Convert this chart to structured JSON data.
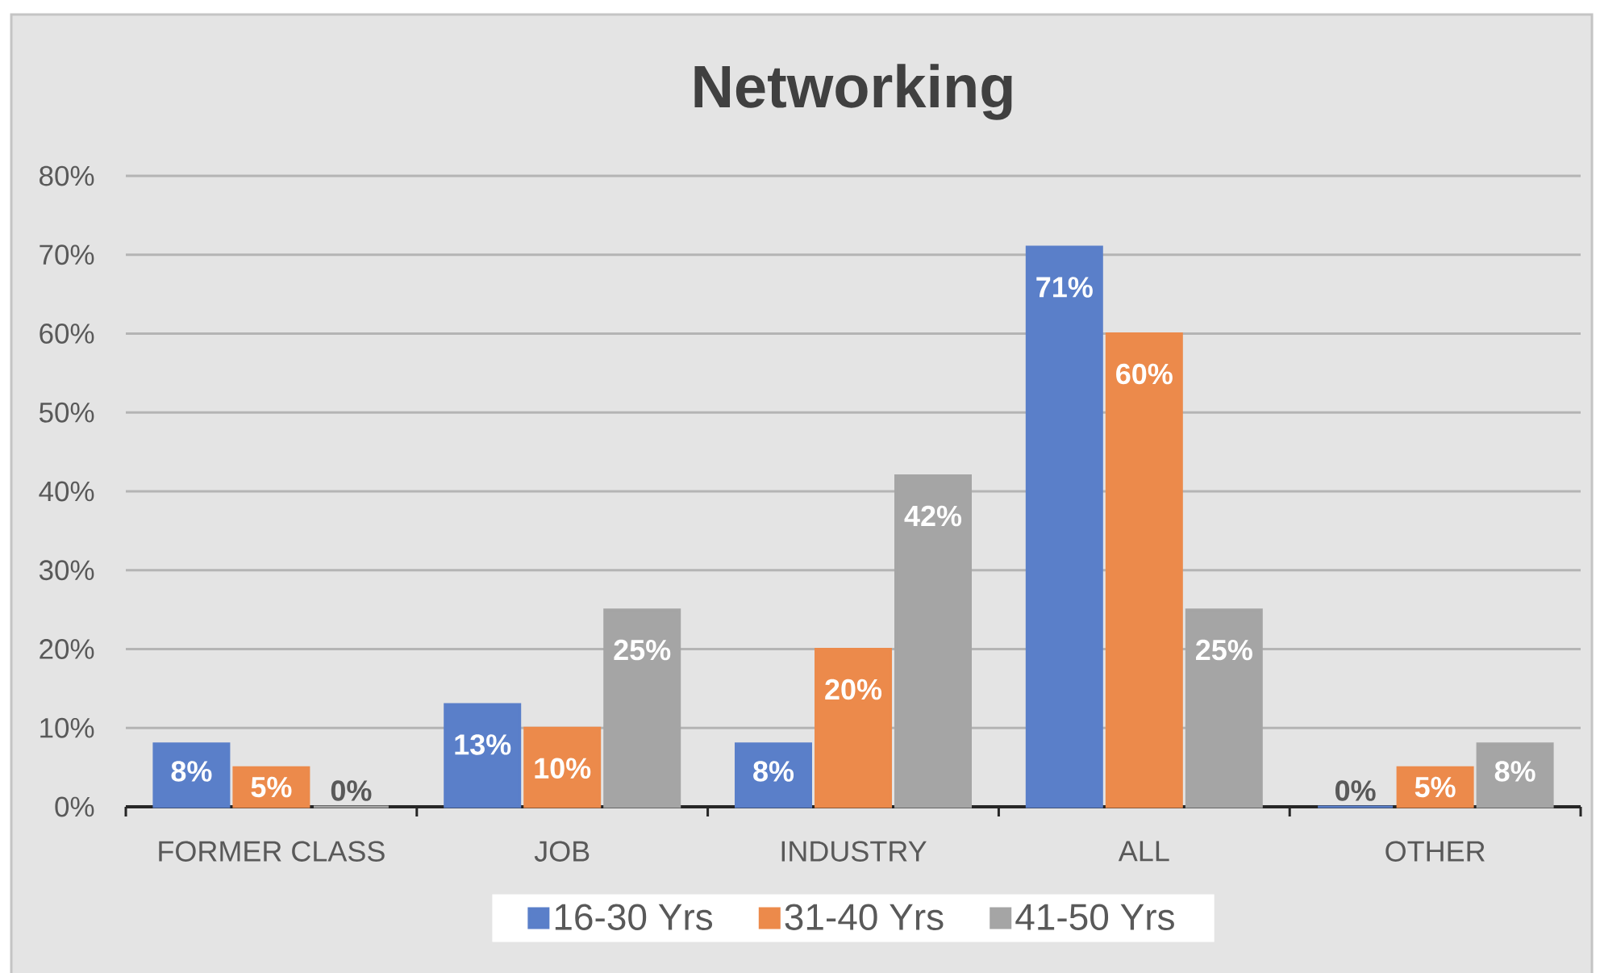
{
  "chart_data": {
    "type": "bar",
    "title": "Networking",
    "categories": [
      "FORMER CLASS",
      "JOB",
      "INDUSTRY",
      "ALL",
      "OTHER"
    ],
    "series": [
      {
        "name": "16-30 Yrs",
        "color": "#5a7fc9",
        "values": [
          8,
          13,
          8,
          71,
          0
        ],
        "value_labels": [
          "8%",
          "13%",
          "8%",
          "71%",
          "0%"
        ]
      },
      {
        "name": "31-40 Yrs",
        "color": "#ec8a4b",
        "values": [
          5,
          10,
          20,
          60,
          5
        ],
        "value_labels": [
          "5%",
          "10%",
          "20%",
          "60%",
          "5%"
        ]
      },
      {
        "name": "41-50 Yrs",
        "color": "#a5a5a5",
        "values": [
          0,
          25,
          42,
          25,
          8
        ],
        "value_labels": [
          "0%",
          "25%",
          "42%",
          "25%",
          "8%"
        ]
      }
    ],
    "ylim": [
      0,
      80
    ],
    "yticks": [
      {
        "value": 0,
        "label": "0%"
      },
      {
        "value": 10,
        "label": "10%"
      },
      {
        "value": 20,
        "label": "20%"
      },
      {
        "value": 30,
        "label": "30%"
      },
      {
        "value": 40,
        "label": "40%"
      },
      {
        "value": 50,
        "label": "50%"
      },
      {
        "value": 60,
        "label": "60%"
      },
      {
        "value": 70,
        "label": "70%"
      },
      {
        "value": 80,
        "label": "80%"
      }
    ],
    "grid": "y",
    "legend": "bottom"
  }
}
